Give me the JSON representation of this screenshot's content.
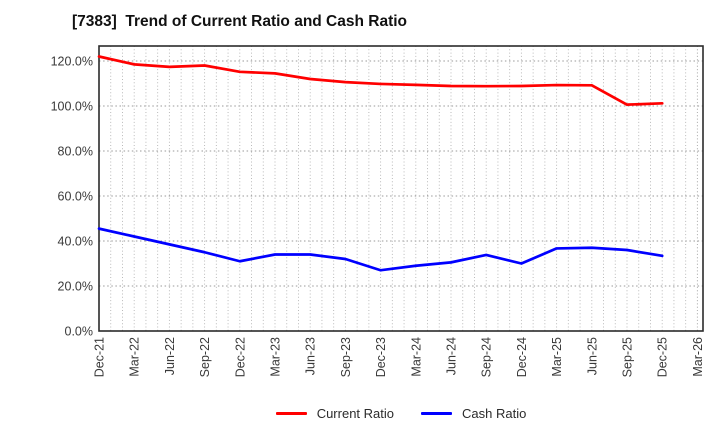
{
  "window": {
    "title": "[7383]  Trend of Current Ratio and Cash Ratio"
  },
  "chart_data": {
    "type": "line",
    "title": "[7383]  Trend of Current Ratio and Cash Ratio",
    "x_labels": [
      "Dec-21",
      "Mar-22",
      "Jun-22",
      "Sep-22",
      "Dec-22",
      "Mar-23",
      "Jun-23",
      "Sep-23",
      "Dec-23",
      "Mar-24",
      "Jun-24",
      "Sep-24",
      "Dec-24",
      "Mar-25",
      "Jun-25",
      "Sep-25",
      "Dec-25",
      "Mar-26"
    ],
    "y_tick_labels": [
      "0.0%",
      "20.0%",
      "40.0%",
      "60.0%",
      "80.0%",
      "100.0%",
      "120.0%"
    ],
    "y_tick_values": [
      0,
      20,
      40,
      60,
      80,
      100,
      120
    ],
    "ylim": [
      0,
      126.7
    ],
    "grid": "dotted horizontal lines every 20% and dotted vertical monthly minor lines",
    "legend_position": "bottom-center",
    "series": [
      {
        "name": "Current Ratio",
        "color": "#ff0000",
        "values": [
          122.0,
          118.5,
          117.4,
          118.0,
          115.2,
          114.5,
          112.0,
          110.6,
          109.8,
          109.4,
          108.9,
          108.8,
          108.9,
          109.3,
          109.2,
          100.6,
          101.2
        ]
      },
      {
        "name": "Cash Ratio",
        "color": "#0000ff",
        "values": [
          45.5,
          42.0,
          38.5,
          35.0,
          31.0,
          34.0,
          34.0,
          32.0,
          27.0,
          29.0,
          30.5,
          33.8,
          30.0,
          36.7,
          37.0,
          36.0,
          33.4
        ]
      }
    ]
  },
  "legend": {
    "items": [
      {
        "label": "Current Ratio",
        "color": "#ff0000"
      },
      {
        "label": "Cash Ratio",
        "color": "#0000ff"
      }
    ]
  },
  "style": {
    "plot_border_color": "#2b2b2b",
    "minor_grid_color": "#b3b3b3",
    "major_grid_color": "#9a9a9a",
    "tick_label_color": "#3a3a3a"
  }
}
